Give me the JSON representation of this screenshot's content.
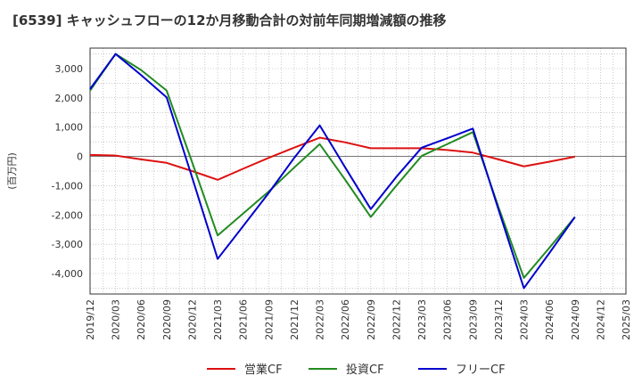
{
  "chart_data": {
    "type": "line",
    "title": "[6539]  キャッシュフローの12か月移動合計の対前年同期増減額の推移",
    "ylabel": "(百万円)",
    "xlabel": "",
    "ylim": [
      -4700,
      3700
    ],
    "yticks": [
      3000,
      2000,
      1000,
      0,
      -1000,
      -2000,
      -3000,
      -4000
    ],
    "ytick_labels": [
      "3,000",
      "2,000",
      "1,000",
      "0",
      "-1,000",
      "-2,000",
      "-3,000",
      "-4,000"
    ],
    "categories": [
      "2019/12",
      "2020/03",
      "2020/06",
      "2020/09",
      "2020/12",
      "2021/03",
      "2021/06",
      "2021/09",
      "2021/12",
      "2022/03",
      "2022/06",
      "2022/09",
      "2022/12",
      "2023/03",
      "2023/06",
      "2023/09",
      "2023/12",
      "2024/03",
      "2024/06",
      "2024/09",
      "2024/12",
      "2025/03"
    ],
    "grid": true,
    "legend_position": "bottom",
    "series": [
      {
        "name": "営業CF",
        "color": "#dd1111",
        "values": [
          50,
          30,
          -100,
          -220,
          -500,
          -800,
          -420,
          -50,
          300,
          640,
          480,
          280,
          280,
          280,
          220,
          130,
          -100,
          -340,
          -180,
          -10,
          null,
          null
        ]
      },
      {
        "name": "投資CF",
        "color": "#228b22",
        "values": [
          2250,
          3500,
          2950,
          2250,
          -200,
          -2700,
          -1950,
          -1200,
          -380,
          420,
          -800,
          -2070,
          -1000,
          20,
          420,
          830,
          -1720,
          -4150,
          -3120,
          -2070,
          null,
          null
        ]
      },
      {
        "name": "フリーCF",
        "color": "#0000cc",
        "values": [
          2300,
          3500,
          2780,
          2020,
          -720,
          -3500,
          -2380,
          -1250,
          -50,
          1060,
          -380,
          -1800,
          -700,
          300,
          620,
          950,
          -1800,
          -4500,
          -3300,
          -2070,
          null,
          null
        ]
      }
    ]
  }
}
